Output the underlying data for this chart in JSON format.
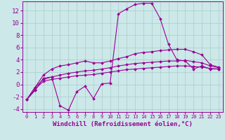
{
  "x": [
    0,
    1,
    2,
    3,
    4,
    5,
    6,
    7,
    8,
    9,
    10,
    11,
    12,
    13,
    14,
    15,
    16,
    17,
    18,
    19,
    20,
    21,
    22,
    23
  ],
  "line1": [
    -2.5,
    -1.0,
    1.0,
    1.2,
    -3.5,
    -4.2,
    -1.2,
    -0.3,
    -2.3,
    0.1,
    0.2,
    11.5,
    12.3,
    13.0,
    13.2,
    13.2,
    10.7,
    6.5,
    4.0,
    3.8,
    2.5,
    3.0,
    2.5,
    2.5
  ],
  "line2": [
    -2.5,
    -0.5,
    1.5,
    2.5,
    3.0,
    3.2,
    3.5,
    3.8,
    3.5,
    3.5,
    3.8,
    4.2,
    4.5,
    5.0,
    5.2,
    5.3,
    5.5,
    5.6,
    5.7,
    5.7,
    5.3,
    4.8,
    3.2,
    2.8
  ],
  "line3": [
    -2.5,
    -0.5,
    0.8,
    1.2,
    1.5,
    1.8,
    2.0,
    2.2,
    2.3,
    2.5,
    2.7,
    3.0,
    3.2,
    3.4,
    3.5,
    3.6,
    3.7,
    3.8,
    3.8,
    3.9,
    3.7,
    3.5,
    3.0,
    2.7
  ],
  "line4": [
    -2.5,
    -0.8,
    0.5,
    0.8,
    1.0,
    1.2,
    1.4,
    1.5,
    1.6,
    1.8,
    2.0,
    2.2,
    2.4,
    2.5,
    2.6,
    2.7,
    2.8,
    2.9,
    3.0,
    3.0,
    2.9,
    2.8,
    2.6,
    2.5
  ],
  "color": "#990099",
  "bgcolor": "#cce8e8",
  "gridcolor": "#aacccc",
  "xlabel": "Windchill (Refroidissement éolien,°C)",
  "xlim": [
    -0.5,
    23.5
  ],
  "ylim": [
    -4.5,
    13.5
  ],
  "yticks": [
    -4,
    -2,
    0,
    2,
    4,
    6,
    8,
    10,
    12
  ],
  "xticks": [
    0,
    1,
    2,
    3,
    4,
    5,
    6,
    7,
    8,
    9,
    10,
    11,
    12,
    13,
    14,
    15,
    16,
    17,
    18,
    19,
    20,
    21,
    22,
    23
  ],
  "xlabel_fontsize": 6.5,
  "tick_fontsize": 6.5
}
